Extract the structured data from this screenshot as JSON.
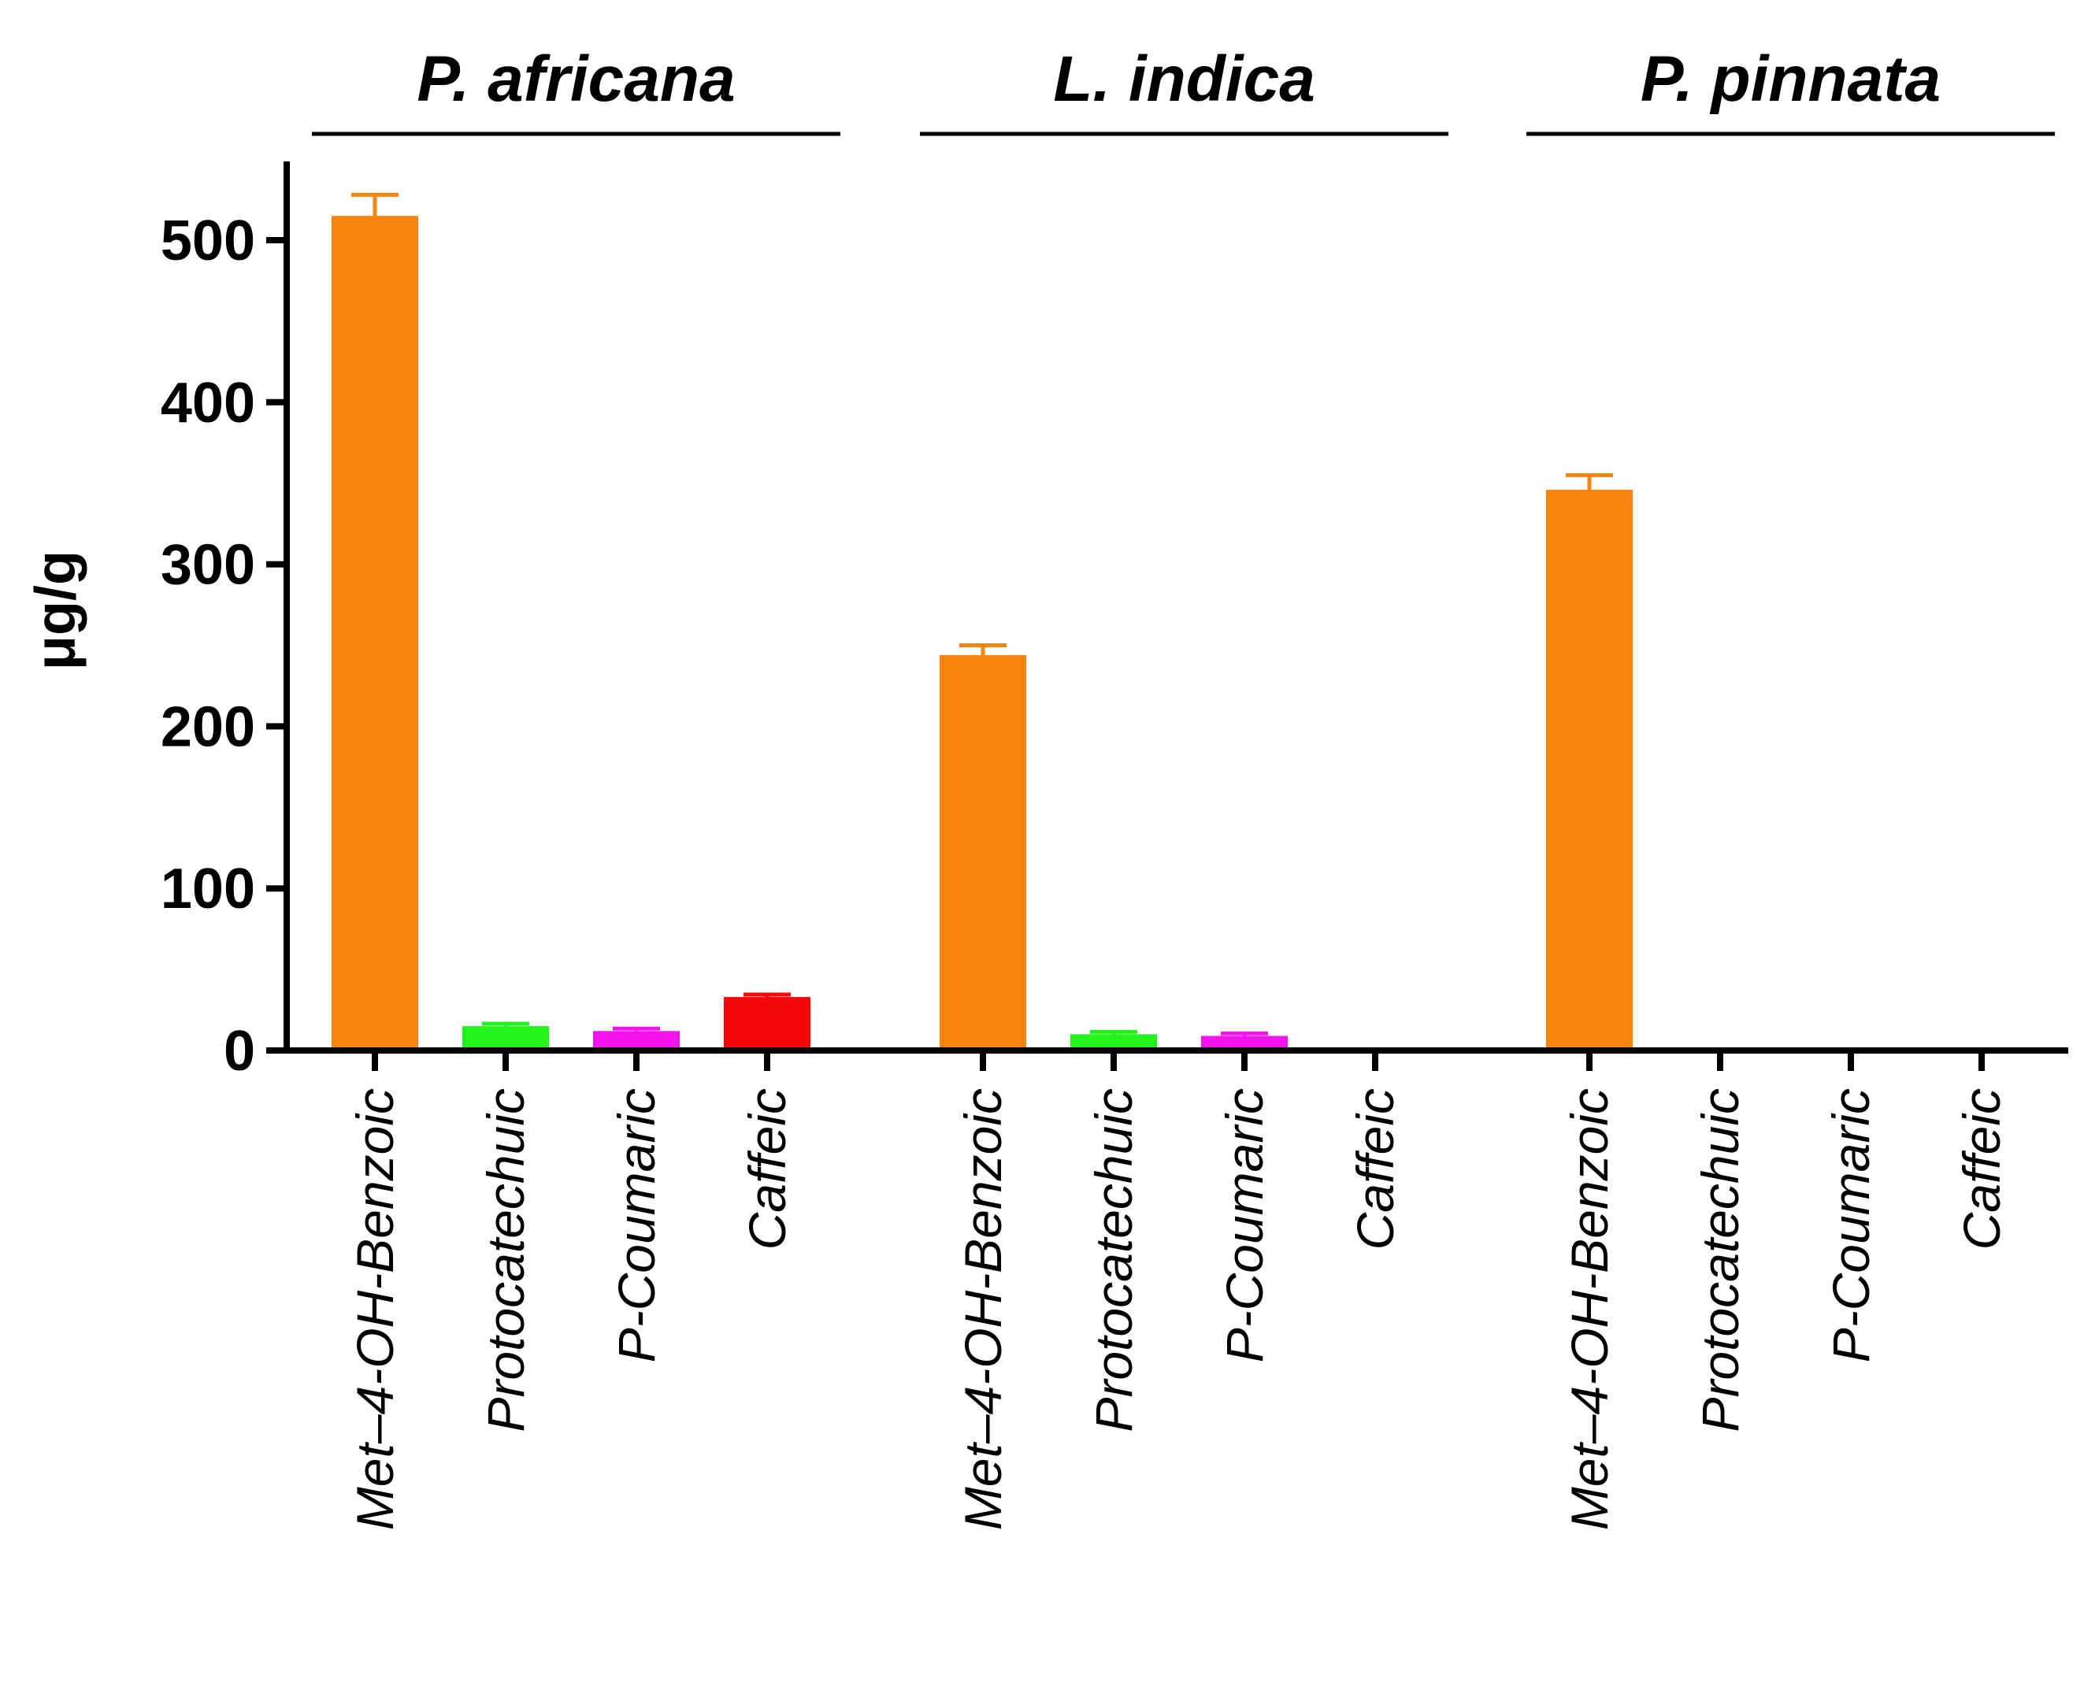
{
  "chart_data": {
    "type": "bar",
    "title": "",
    "xlabel": "",
    "ylabel": "μg/g",
    "ylim": [
      0,
      550
    ],
    "yticks": [
      0,
      100,
      200,
      300,
      400,
      500
    ],
    "grid": false,
    "legend": "none",
    "colors": {
      "Met–4-OH-Benzoic": "#F8830D",
      "Protocatechuic": "#22F31A",
      "P-Coumaric": "#F514F0",
      "Caffeic": "#F50808",
      "axis": "#000000"
    },
    "groups": [
      {
        "name": "P. africana",
        "bars": [
          {
            "category": "Met–4-OH-Benzoic",
            "value": 515,
            "error": 13
          },
          {
            "category": "Protocatechuic",
            "value": 15,
            "error": 1.5
          },
          {
            "category": "P-Coumaric",
            "value": 12,
            "error": 1.5
          },
          {
            "category": "Caffeic",
            "value": 33,
            "error": 1.5
          }
        ]
      },
      {
        "name": "L. indica",
        "bars": [
          {
            "category": "Met–4-OH-Benzoic",
            "value": 244,
            "error": 6
          },
          {
            "category": "Protocatechuic",
            "value": 10,
            "error": 1.5
          },
          {
            "category": "P-Coumaric",
            "value": 9,
            "error": 1.5
          },
          {
            "category": "Caffeic",
            "value": 0,
            "error": 0
          }
        ]
      },
      {
        "name": "P. pinnata",
        "bars": [
          {
            "category": "Met–4-OH-Benzoic",
            "value": 346,
            "error": 9
          },
          {
            "category": "Protocatechuic",
            "value": 0,
            "error": 0
          },
          {
            "category": "P-Coumaric",
            "value": 0,
            "error": 0
          },
          {
            "category": "Caffeic",
            "value": 0,
            "error": 0
          }
        ]
      }
    ]
  }
}
